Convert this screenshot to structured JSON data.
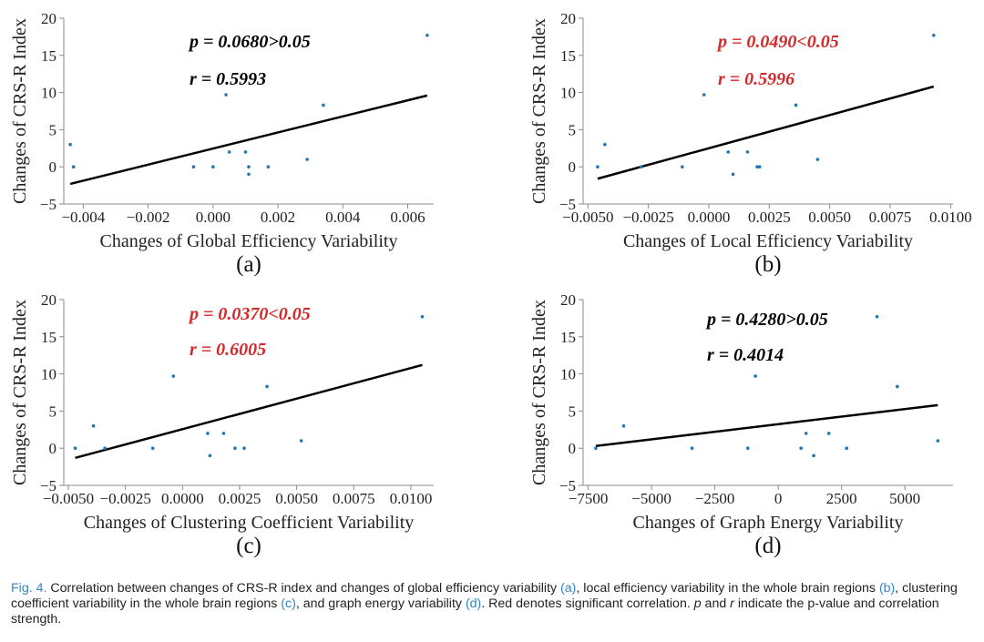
{
  "caption": {
    "fig_label": "Fig. 4.",
    "part1": " Correlation between changes of CRS-R index and changes of global efficiency variability ",
    "ref_a": "(a)",
    "part2": ", local efficiency variability in the whole brain regions ",
    "ref_b": "(b)",
    "part3": ", clustering coefficient variability in the whole brain regions ",
    "ref_c": "(c)",
    "part4": ", and graph energy variability ",
    "ref_d": "(d)",
    "part5": ". Red denotes significant correlation. ",
    "p_symbol": "p",
    "part6": " and ",
    "r_symbol": "r",
    "part7": " indicate the p-value and correlation strength."
  },
  "colors": {
    "point": "#1f77b4",
    "fit_line": "#000000",
    "significant": "#d62728",
    "not_significant": "#000000",
    "axis": "#8a8a8a",
    "caption_ref": "#2f88c8"
  },
  "chart_data": [
    {
      "type": "scatter",
      "panel_label": "(a)",
      "xlabel": "Changes of Global Efficiency Variability",
      "ylabel": "Changes of CRS-R Index",
      "xlim": [
        -0.0046,
        0.0068
      ],
      "ylim": [
        -5,
        20
      ],
      "xticks": [
        -0.004,
        -0.002,
        0.0,
        0.002,
        0.004,
        0.006
      ],
      "xtick_labels": [
        "−0.004",
        "−0.002",
        "0.000",
        "0.002",
        "0.004",
        "0.006"
      ],
      "yticks": [
        -5,
        0,
        5,
        10,
        15,
        20
      ],
      "ytick_labels": [
        "−5",
        "0",
        "5",
        "10",
        "15",
        "20"
      ],
      "points": [
        {
          "x": -0.0044,
          "y": 3
        },
        {
          "x": -0.0043,
          "y": 0
        },
        {
          "x": -0.0006,
          "y": 0
        },
        {
          "x": 0.0,
          "y": 0
        },
        {
          "x": 0.0004,
          "y": 9.7
        },
        {
          "x": 0.0005,
          "y": 2
        },
        {
          "x": 0.001,
          "y": 2
        },
        {
          "x": 0.0011,
          "y": 0
        },
        {
          "x": 0.0011,
          "y": -1
        },
        {
          "x": 0.0017,
          "y": 0
        },
        {
          "x": 0.0029,
          "y": 1
        },
        {
          "x": 0.0034,
          "y": 8.3
        },
        {
          "x": 0.0066,
          "y": 17.7
        }
      ],
      "fit_line": [
        {
          "x": -0.0044,
          "y": -2.3
        },
        {
          "x": 0.0066,
          "y": 9.6
        }
      ],
      "stats": {
        "p_text": "p = 0.0680>0.05",
        "r_text": "r = 0.5993",
        "significant": false
      }
    },
    {
      "type": "scatter",
      "panel_label": "(b)",
      "xlabel": "Changes of Local Efficiency Variability",
      "ylabel": "Changes of CRS-R Index",
      "xlim": [
        -0.0052,
        0.0101
      ],
      "ylim": [
        -5,
        20
      ],
      "xticks": [
        -0.005,
        -0.0025,
        0.0,
        0.0025,
        0.005,
        0.0075,
        0.01
      ],
      "xtick_labels": [
        "−0.0050",
        "−0.0025",
        "0.0000",
        "0.0025",
        "0.0050",
        "0.0075",
        "0.0100"
      ],
      "yticks": [
        -5,
        0,
        5,
        10,
        15,
        20
      ],
      "ytick_labels": [
        "−5",
        "0",
        "5",
        "10",
        "15",
        "20"
      ],
      "points": [
        {
          "x": -0.0046,
          "y": 0
        },
        {
          "x": -0.0043,
          "y": 3
        },
        {
          "x": -0.0028,
          "y": 0
        },
        {
          "x": -0.0011,
          "y": 0
        },
        {
          "x": -0.0002,
          "y": 9.7
        },
        {
          "x": 0.0008,
          "y": 2
        },
        {
          "x": 0.001,
          "y": -1
        },
        {
          "x": 0.0016,
          "y": 2
        },
        {
          "x": 0.002,
          "y": 0
        },
        {
          "x": 0.0021,
          "y": 0
        },
        {
          "x": 0.0036,
          "y": 8.3
        },
        {
          "x": 0.0045,
          "y": 1
        },
        {
          "x": 0.0093,
          "y": 17.7
        }
      ],
      "fit_line": [
        {
          "x": -0.0046,
          "y": -1.6
        },
        {
          "x": 0.0093,
          "y": 10.8
        }
      ],
      "stats": {
        "p_text": "p = 0.0490<0.05",
        "r_text": "r = 0.5996",
        "significant": true
      }
    },
    {
      "type": "scatter",
      "panel_label": "(c)",
      "xlabel": "Changes of Clustering Coefficient Variability",
      "ylabel": "Changes of CRS-R Index",
      "xlim": [
        -0.0052,
        0.011
      ],
      "ylim": [
        -5,
        20
      ],
      "xticks": [
        -0.005,
        -0.0025,
        0.0,
        0.0025,
        0.005,
        0.0075,
        0.01
      ],
      "xtick_labels": [
        "−0.0050",
        "−0.0025",
        "0.0000",
        "0.0025",
        "0.0050",
        "0.0075",
        "0.0100"
      ],
      "yticks": [
        -5,
        0,
        5,
        10,
        15,
        20
      ],
      "ytick_labels": [
        "−5",
        "0",
        "5",
        "10",
        "15",
        "20"
      ],
      "points": [
        {
          "x": -0.0047,
          "y": 0
        },
        {
          "x": -0.0039,
          "y": 3
        },
        {
          "x": -0.0034,
          "y": 0
        },
        {
          "x": -0.0013,
          "y": 0
        },
        {
          "x": -0.0004,
          "y": 9.7
        },
        {
          "x": 0.0011,
          "y": 2
        },
        {
          "x": 0.0012,
          "y": -1
        },
        {
          "x": 0.0018,
          "y": 2
        },
        {
          "x": 0.0023,
          "y": 0
        },
        {
          "x": 0.0027,
          "y": 0
        },
        {
          "x": 0.0037,
          "y": 8.3
        },
        {
          "x": 0.0052,
          "y": 1
        },
        {
          "x": 0.0105,
          "y": 17.7
        }
      ],
      "fit_line": [
        {
          "x": -0.0047,
          "y": -1.3
        },
        {
          "x": 0.0105,
          "y": 11.2
        }
      ],
      "stats": {
        "p_text": "p = 0.0370<0.05",
        "r_text": "r = 0.6005",
        "significant": true
      }
    },
    {
      "type": "scatter",
      "panel_label": "(d)",
      "xlabel": "Changes of Graph Energy Variability",
      "ylabel": "Changes of CRS-R Index",
      "xlim": [
        -7700,
        6900
      ],
      "ylim": [
        -5,
        20
      ],
      "xticks": [
        -7500,
        -5000,
        -2500,
        0,
        2500,
        5000
      ],
      "xtick_labels": [
        "−7500",
        "−5000",
        "−2500",
        "0",
        "2500",
        "5000"
      ],
      "yticks": [
        -5,
        0,
        5,
        10,
        15,
        20
      ],
      "ytick_labels": [
        "−5",
        "0",
        "5",
        "10",
        "15",
        "20"
      ],
      "points": [
        {
          "x": -7200,
          "y": 0
        },
        {
          "x": -6100,
          "y": 3
        },
        {
          "x": -3400,
          "y": 0
        },
        {
          "x": -1200,
          "y": 0
        },
        {
          "x": -900,
          "y": 9.7
        },
        {
          "x": 900,
          "y": 0
        },
        {
          "x": 1100,
          "y": 2
        },
        {
          "x": 1400,
          "y": -1
        },
        {
          "x": 2000,
          "y": 2
        },
        {
          "x": 2700,
          "y": 0
        },
        {
          "x": 3900,
          "y": 17.7
        },
        {
          "x": 4700,
          "y": 8.3
        },
        {
          "x": 6300,
          "y": 1
        }
      ],
      "fit_line": [
        {
          "x": -7200,
          "y": 0.3
        },
        {
          "x": 6300,
          "y": 5.8
        }
      ],
      "stats": {
        "p_text": "p = 0.4280>0.05",
        "r_text": "r = 0.4014",
        "significant": false
      }
    }
  ]
}
